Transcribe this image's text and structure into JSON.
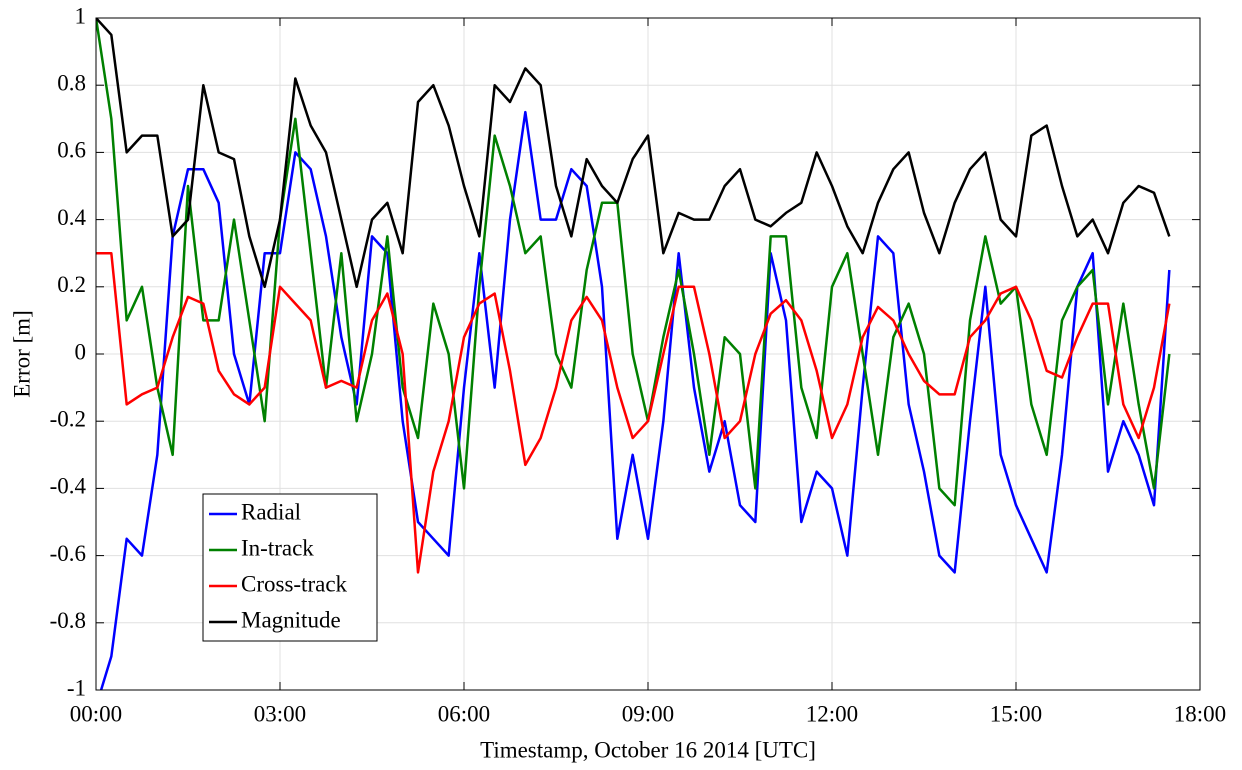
{
  "chart_data": {
    "type": "line",
    "xlabel": "Timestamp, October 16 2014 [UTC]",
    "ylabel": "Error [m]",
    "x": [
      0,
      0.25,
      0.5,
      0.75,
      1,
      1.25,
      1.5,
      1.75,
      2,
      2.25,
      2.5,
      2.75,
      3,
      3.25,
      3.5,
      3.75,
      4,
      4.25,
      4.5,
      4.75,
      5,
      5.25,
      5.5,
      5.75,
      6,
      6.25,
      6.5,
      6.75,
      7,
      7.25,
      7.5,
      7.75,
      8,
      8.25,
      8.5,
      8.75,
      9,
      9.25,
      9.5,
      9.75,
      10,
      10.25,
      10.5,
      10.75,
      11,
      11.25,
      11.5,
      11.75,
      12,
      12.25,
      12.5,
      12.75,
      13,
      13.25,
      13.5,
      13.75,
      14,
      14.25,
      14.5,
      14.75,
      15,
      15.25,
      15.5,
      15.75,
      16,
      16.25,
      16.5,
      16.75,
      17,
      17.25,
      17.5
    ],
    "series": [
      {
        "name": "Radial",
        "color": "#0000ff",
        "values": [
          -1.05,
          -0.9,
          -0.55,
          -0.6,
          -0.3,
          0.35,
          0.55,
          0.55,
          0.45,
          0.0,
          -0.15,
          0.3,
          0.3,
          0.6,
          0.55,
          0.35,
          0.05,
          -0.15,
          0.35,
          0.3,
          -0.2,
          -0.5,
          -0.55,
          -0.6,
          -0.1,
          0.3,
          -0.1,
          0.4,
          0.72,
          0.4,
          0.4,
          0.55,
          0.5,
          0.2,
          -0.55,
          -0.3,
          -0.55,
          -0.2,
          0.3,
          -0.1,
          -0.35,
          -0.2,
          -0.45,
          -0.5,
          0.3,
          0.1,
          -0.5,
          -0.35,
          -0.4,
          -0.6,
          -0.1,
          0.35,
          0.3,
          -0.15,
          -0.35,
          -0.6,
          -0.65,
          -0.2,
          0.2,
          -0.3,
          -0.45,
          -0.55,
          -0.65,
          -0.3,
          0.2,
          0.3,
          -0.35,
          -0.2,
          -0.3,
          -0.45,
          0.25
        ]
      },
      {
        "name": "In-track",
        "color": "#008000",
        "values": [
          1.0,
          0.7,
          0.1,
          0.2,
          -0.1,
          -0.3,
          0.5,
          0.1,
          0.1,
          0.4,
          0.1,
          -0.2,
          0.4,
          0.7,
          0.3,
          -0.1,
          0.3,
          -0.2,
          0.0,
          0.35,
          -0.1,
          -0.25,
          0.15,
          0.0,
          -0.4,
          0.2,
          0.65,
          0.5,
          0.3,
          0.35,
          0.0,
          -0.1,
          0.25,
          0.45,
          0.45,
          0.0,
          -0.2,
          0.05,
          0.25,
          0.0,
          -0.3,
          0.05,
          0.0,
          -0.4,
          0.35,
          0.35,
          -0.1,
          -0.25,
          0.2,
          0.3,
          0.0,
          -0.3,
          0.05,
          0.15,
          0.0,
          -0.4,
          -0.45,
          0.1,
          0.35,
          0.15,
          0.2,
          -0.15,
          -0.3,
          0.1,
          0.2,
          0.25,
          -0.15,
          0.15,
          -0.15,
          -0.4,
          0.0
        ]
      },
      {
        "name": "Cross-track",
        "color": "#ff0000",
        "values": [
          0.3,
          0.3,
          -0.15,
          -0.12,
          -0.1,
          0.05,
          0.17,
          0.15,
          -0.05,
          -0.12,
          -0.15,
          -0.1,
          0.2,
          0.15,
          0.1,
          -0.1,
          -0.08,
          -0.1,
          0.1,
          0.18,
          0.0,
          -0.65,
          -0.35,
          -0.2,
          0.05,
          0.15,
          0.18,
          -0.05,
          -0.33,
          -0.25,
          -0.1,
          0.1,
          0.17,
          0.1,
          -0.1,
          -0.25,
          -0.2,
          0.0,
          0.2,
          0.2,
          0.0,
          -0.25,
          -0.2,
          0.0,
          0.12,
          0.16,
          0.1,
          -0.05,
          -0.25,
          -0.15,
          0.05,
          0.14,
          0.1,
          0.0,
          -0.08,
          -0.12,
          -0.12,
          0.05,
          0.1,
          0.18,
          0.2,
          0.1,
          -0.05,
          -0.07,
          0.05,
          0.15,
          0.15,
          -0.15,
          -0.25,
          -0.1,
          0.15
        ]
      },
      {
        "name": "Magnitude",
        "color": "#000000",
        "values": [
          1.0,
          0.95,
          0.6,
          0.65,
          0.65,
          0.35,
          0.4,
          0.8,
          0.6,
          0.58,
          0.35,
          0.2,
          0.4,
          0.82,
          0.68,
          0.6,
          0.4,
          0.2,
          0.4,
          0.45,
          0.3,
          0.75,
          0.8,
          0.68,
          0.5,
          0.35,
          0.8,
          0.75,
          0.85,
          0.8,
          0.5,
          0.35,
          0.58,
          0.5,
          0.45,
          0.58,
          0.65,
          0.3,
          0.42,
          0.4,
          0.4,
          0.5,
          0.55,
          0.4,
          0.38,
          0.42,
          0.45,
          0.6,
          0.5,
          0.38,
          0.3,
          0.45,
          0.55,
          0.6,
          0.42,
          0.3,
          0.45,
          0.55,
          0.6,
          0.4,
          0.35,
          0.65,
          0.68,
          0.5,
          0.35,
          0.4,
          0.3,
          0.45,
          0.5,
          0.48,
          0.35
        ]
      }
    ],
    "xlim": [
      0,
      18
    ],
    "xticks": [
      {
        "value": 0,
        "label": "00:00"
      },
      {
        "value": 3,
        "label": "03:00"
      },
      {
        "value": 6,
        "label": "06:00"
      },
      {
        "value": 9,
        "label": "09:00"
      },
      {
        "value": 12,
        "label": "12:00"
      },
      {
        "value": 15,
        "label": "15:00"
      },
      {
        "value": 18,
        "label": "18:00"
      }
    ],
    "ylim": [
      -1,
      1
    ],
    "yticks": [
      -1,
      -0.8,
      -0.6,
      -0.4,
      -0.2,
      0,
      0.2,
      0.4,
      0.6,
      0.8,
      1
    ],
    "grid": true,
    "legend": "lower left"
  }
}
